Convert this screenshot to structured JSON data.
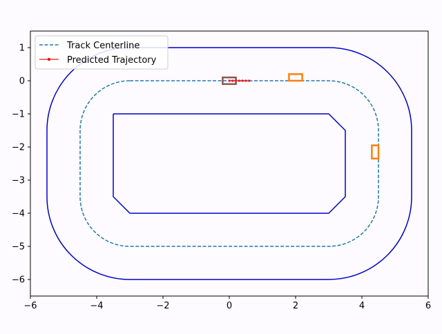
{
  "chart_data": {
    "type": "line",
    "title": "",
    "xlabel": "",
    "ylabel": "",
    "xlim": [
      -6,
      6
    ],
    "ylim": [
      -6.5,
      1.5
    ],
    "xticks": [
      -6,
      -4,
      -2,
      0,
      2,
      4,
      6
    ],
    "yticks": [
      1,
      0,
      -1,
      -2,
      -3,
      -4,
      -5,
      -6
    ],
    "xtick_labels": [
      "−6",
      "−4",
      "−2",
      "0",
      "2",
      "4",
      "6"
    ],
    "ytick_labels": [
      "1",
      "0",
      "−1",
      "−2",
      "−3",
      "−4",
      "−5",
      "−6"
    ],
    "grid": false,
    "legend_location": "upper-left",
    "series": [
      {
        "name": "",
        "kind": "outer-boundary",
        "color": "#0000cc",
        "style": "solid",
        "rounded_rect": {
          "x_min": -5.5,
          "x_max": 5.5,
          "y_min": -6,
          "y_max": 1,
          "corner_radius": 2.5
        }
      },
      {
        "name": "Track Centerline",
        "kind": "centerline",
        "color": "#1f77b4",
        "style": "dashed",
        "rounded_rect": {
          "x_min": -4.5,
          "x_max": 4.5,
          "y_min": -5,
          "y_max": 0,
          "corner_radius": 1.5
        }
      },
      {
        "name": "",
        "kind": "inner-boundary",
        "color": "#0000cc",
        "style": "solid",
        "polyline": [
          [
            -3.5,
            -1
          ],
          [
            3.0,
            -1
          ],
          [
            3.5,
            -1.5
          ],
          [
            3.5,
            -3.5
          ],
          [
            3.0,
            -4
          ],
          [
            -3.0,
            -4
          ],
          [
            -3.5,
            -3.5
          ],
          [
            -3.5,
            -1
          ]
        ]
      },
      {
        "name": "Predicted Trajectory",
        "kind": "trajectory",
        "color": "#e31a1c",
        "style": "solid-with-markers",
        "x": [
          0.0,
          0.1,
          0.2,
          0.3,
          0.4,
          0.5,
          0.6
        ],
        "y": [
          0,
          0,
          0,
          0,
          0,
          0,
          0
        ]
      }
    ],
    "vehicles": [
      {
        "role": "ego",
        "color": "#8c564b",
        "center": [
          0.0,
          0.0
        ],
        "length": 0.4,
        "width": 0.2,
        "heading_deg": 0
      },
      {
        "role": "obstacle",
        "color": "#ff7f0e",
        "center": [
          2.0,
          0.1
        ],
        "length": 0.4,
        "width": 0.2,
        "heading_deg": 0
      },
      {
        "role": "obstacle",
        "color": "#ff7f0e",
        "center": [
          4.4,
          -2.15
        ],
        "length": 0.4,
        "width": 0.2,
        "heading_deg": 90
      }
    ]
  }
}
